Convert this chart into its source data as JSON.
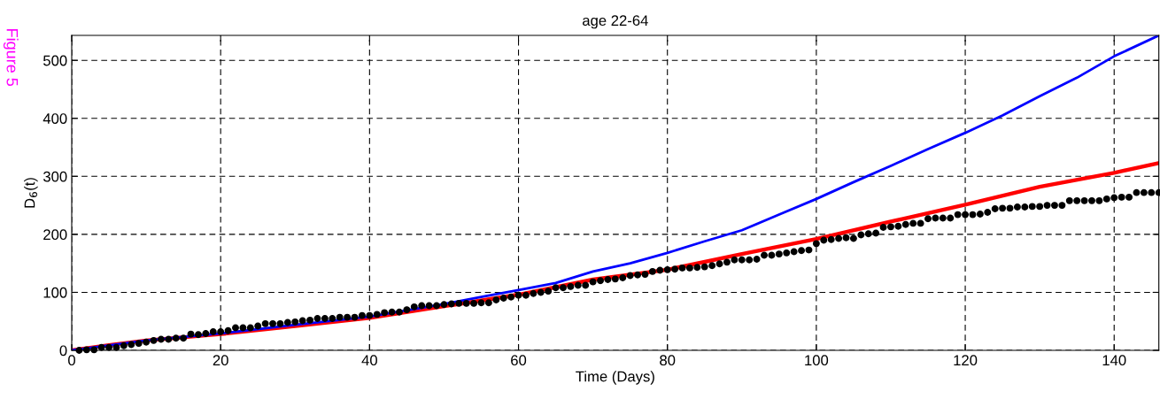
{
  "chart_data": {
    "type": "line",
    "title": "age 22-64",
    "xlabel": "Time (Days)",
    "ylabel": "D$_{6}$(t)",
    "annotations": [
      "Figure 5"
    ],
    "xlim": [
      0,
      146
    ],
    "ylim": [
      0,
      543
    ],
    "xticks": [
      0,
      20,
      40,
      60,
      80,
      100,
      120,
      140
    ],
    "yticks": [
      0,
      100,
      200,
      300,
      400,
      500
    ],
    "grid": true,
    "line_style": "solid",
    "series": [
      {
        "type": "line",
        "color": "#0000ff",
        "x": [
          0,
          10,
          20,
          30,
          40,
          50,
          55,
          60,
          65,
          70,
          75,
          80,
          85,
          90,
          95,
          100,
          105,
          110,
          115,
          120,
          125,
          130,
          135,
          140,
          146
        ],
        "values": [
          0,
          17,
          29,
          44,
          58,
          80,
          92,
          104,
          116,
          136,
          150,
          168,
          188,
          207,
          234,
          261,
          290,
          318,
          347,
          375,
          405,
          438,
          470,
          507,
          543
        ]
      },
      {
        "type": "line",
        "color": "#ff0000",
        "x": [
          0,
          5,
          10,
          20,
          30,
          40,
          50,
          60,
          70,
          80,
          90,
          100,
          110,
          120,
          130,
          140,
          146
        ],
        "values": [
          0,
          9,
          17,
          28,
          42,
          56,
          76,
          96,
          122,
          139,
          166,
          192,
          222,
          251,
          282,
          306,
          323
        ]
      },
      {
        "type": "scatter",
        "color": "#000000",
        "marker": "circle",
        "x": [
          1,
          2,
          3,
          4,
          5,
          6,
          7,
          8,
          9,
          10,
          11,
          12,
          13,
          14,
          15,
          16,
          17,
          18,
          19,
          20,
          21,
          22,
          23,
          24,
          25,
          26,
          27,
          28,
          29,
          30,
          31,
          32,
          33,
          34,
          35,
          36,
          37,
          38,
          39,
          40,
          41,
          42,
          43,
          44,
          45,
          46,
          47,
          48,
          49,
          50,
          51,
          52,
          53,
          54,
          55,
          56,
          57,
          58,
          59,
          60,
          61,
          62,
          63,
          64,
          65,
          66,
          67,
          68,
          69,
          70,
          71,
          72,
          73,
          74,
          75,
          76,
          77,
          78,
          79,
          80,
          81,
          82,
          83,
          84,
          85,
          86,
          87,
          88,
          89,
          90,
          91,
          92,
          93,
          94,
          95,
          96,
          97,
          98,
          99,
          100,
          101,
          102,
          103,
          104,
          105,
          106,
          107,
          108,
          109,
          110,
          111,
          112,
          113,
          114,
          115,
          116,
          117,
          118,
          119,
          120,
          121,
          122,
          123,
          124,
          125,
          126,
          127,
          128,
          129,
          130,
          131,
          132,
          133,
          134,
          135,
          136,
          137,
          138,
          139,
          140,
          141,
          142,
          143,
          144,
          145,
          146
        ],
        "values": [
          0,
          1,
          1,
          5,
          5,
          5,
          8,
          10,
          12,
          14,
          17,
          19,
          19,
          21,
          21,
          28,
          27,
          29,
          32,
          32,
          34,
          39,
          39,
          39,
          42,
          46,
          46,
          46,
          48,
          49,
          51,
          52,
          55,
          55,
          55,
          57,
          57,
          57,
          60,
          60,
          62,
          65,
          66,
          66,
          70,
          75,
          77,
          77,
          77,
          79,
          80,
          81,
          81,
          81,
          82,
          82,
          87,
          90,
          92,
          95,
          95,
          98,
          100,
          102,
          108,
          108,
          110,
          112,
          112,
          118,
          120,
          122,
          123,
          125,
          129,
          130,
          131,
          136,
          138,
          139,
          140,
          142,
          142,
          143,
          144,
          146,
          149,
          152,
          156,
          156,
          156,
          157,
          164,
          164,
          166,
          168,
          170,
          172,
          173,
          184,
          190,
          191,
          193,
          194,
          193,
          199,
          201,
          202,
          212,
          213,
          214,
          217,
          219,
          219,
          227,
          228,
          228,
          228,
          234,
          234,
          234,
          235,
          238,
          244,
          245,
          245,
          247,
          247,
          248,
          248,
          250,
          250,
          250,
          258,
          258,
          258,
          258,
          258,
          261,
          263,
          264,
          264,
          272,
          272,
          272,
          272
        ]
      }
    ]
  }
}
